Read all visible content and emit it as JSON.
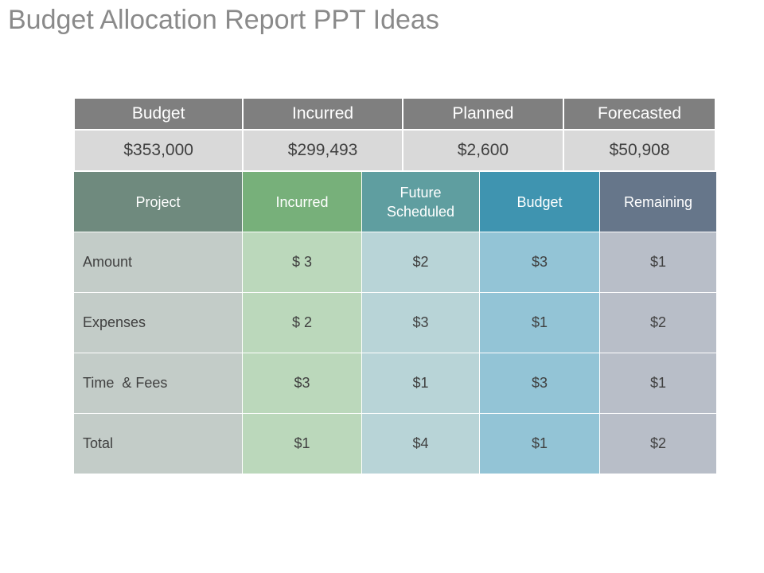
{
  "title": "Budget Allocation Report PPT Ideas",
  "summary": {
    "headers": [
      "Budget",
      "Incurred",
      "Planned",
      "Forecasted"
    ],
    "values": [
      "$353,000",
      "$299,493",
      "$2,600",
      "$50,908"
    ]
  },
  "detail": {
    "headers": [
      "Project",
      "Incurred",
      "Future Scheduled",
      "Budget",
      "Remaining"
    ],
    "rows": [
      {
        "label": "Amount",
        "cells": [
          "$ 3",
          "$2",
          "$3",
          "$1"
        ]
      },
      {
        "label": "Expenses",
        "cells": [
          "$ 2",
          "$3",
          "$1",
          "$2"
        ]
      },
      {
        "label": "Time  & Fees",
        "cells": [
          "$3",
          "$1",
          "$3",
          "$1"
        ]
      },
      {
        "label": "Total",
        "cells": [
          "$1",
          "$4",
          "$1",
          "$2"
        ]
      }
    ]
  },
  "colors": {
    "project_header": "#6f8a7e",
    "incurred_header": "#77b07a",
    "future_header": "#5f9ea0",
    "budget_header": "#3f94b0",
    "remaining_header": "#66768a"
  }
}
